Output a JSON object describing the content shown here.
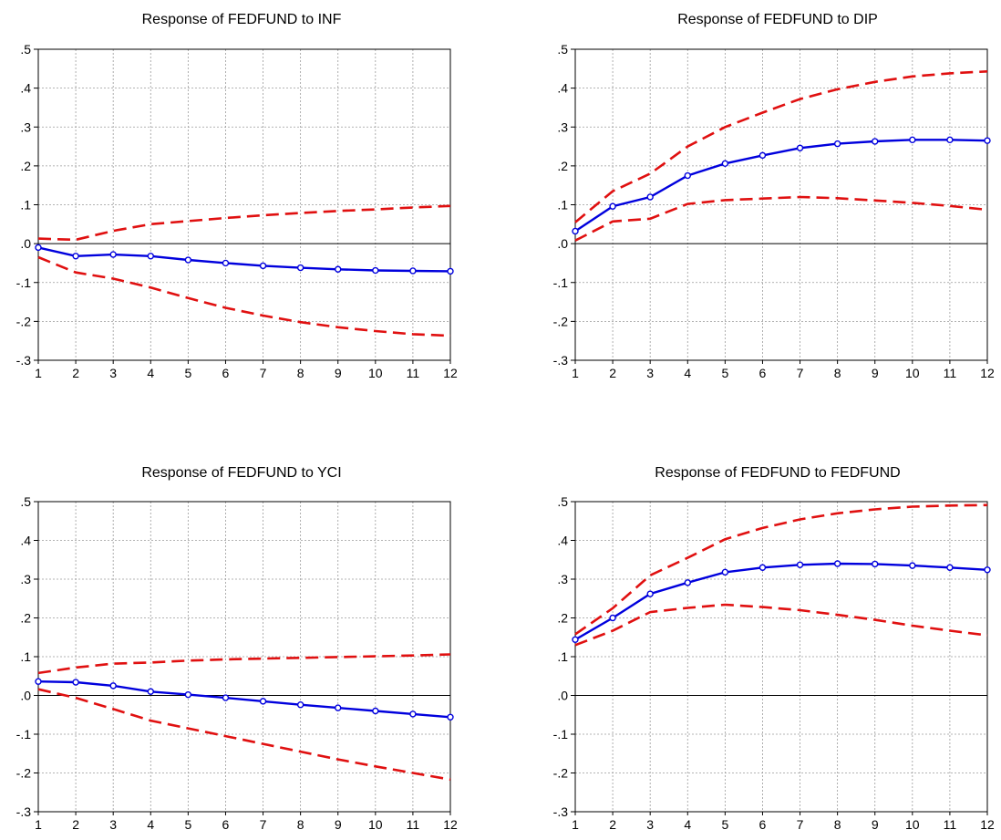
{
  "colors": {
    "response": "#0000dd",
    "bands": "#e01010",
    "grid": "#9a9a9a",
    "axis": "#000000"
  },
  "chart_data": [
    {
      "type": "line",
      "title": "Response of FEDFUND to INF",
      "xlabel": "",
      "ylabel": "",
      "x": [
        1,
        2,
        3,
        4,
        5,
        6,
        7,
        8,
        9,
        10,
        11,
        12
      ],
      "ylim": [
        -0.3,
        0.5
      ],
      "yticks": [
        ".5",
        ".4",
        ".3",
        ".2",
        ".1",
        ".0",
        "-.1",
        "-.2",
        "-.3"
      ],
      "ytick_values": [
        0.5,
        0.4,
        0.3,
        0.2,
        0.1,
        0.0,
        -0.1,
        -0.2,
        -0.3
      ],
      "xticks": [
        "1",
        "2",
        "3",
        "4",
        "5",
        "6",
        "7",
        "8",
        "9",
        "10",
        "11",
        "12"
      ],
      "grid": true,
      "series": [
        {
          "role": "response",
          "values": [
            -0.01,
            -0.032,
            -0.028,
            -0.032,
            -0.042,
            -0.05,
            -0.057,
            -0.062,
            -0.066,
            -0.069,
            -0.07,
            -0.071
          ]
        },
        {
          "role": "upper_band",
          "values": [
            0.013,
            0.01,
            0.033,
            0.05,
            0.058,
            0.066,
            0.073,
            0.079,
            0.084,
            0.088,
            0.093,
            0.097
          ]
        },
        {
          "role": "lower_band",
          "values": [
            -0.035,
            -0.074,
            -0.09,
            -0.113,
            -0.14,
            -0.165,
            -0.185,
            -0.202,
            -0.215,
            -0.225,
            -0.233,
            -0.237
          ]
        }
      ]
    },
    {
      "type": "line",
      "title": "Response of FEDFUND to DIP",
      "xlabel": "",
      "ylabel": "",
      "x": [
        1,
        2,
        3,
        4,
        5,
        6,
        7,
        8,
        9,
        10,
        11,
        12
      ],
      "ylim": [
        -0.3,
        0.5
      ],
      "yticks": [
        ".5",
        ".4",
        ".3",
        ".2",
        ".1",
        ".0",
        "-.1",
        "-.2",
        "-.3"
      ],
      "ytick_values": [
        0.5,
        0.4,
        0.3,
        0.2,
        0.1,
        0.0,
        -0.1,
        -0.2,
        -0.3
      ],
      "xticks": [
        "1",
        "2",
        "3",
        "4",
        "5",
        "6",
        "7",
        "8",
        "9",
        "10",
        "11",
        "12"
      ],
      "grid": true,
      "series": [
        {
          "role": "response",
          "values": [
            0.032,
            0.096,
            0.12,
            0.175,
            0.206,
            0.227,
            0.246,
            0.257,
            0.263,
            0.267,
            0.267,
            0.265
          ]
        },
        {
          "role": "upper_band",
          "values": [
            0.055,
            0.135,
            0.18,
            0.25,
            0.3,
            0.337,
            0.372,
            0.397,
            0.416,
            0.43,
            0.438,
            0.443
          ]
        },
        {
          "role": "lower_band",
          "values": [
            0.008,
            0.057,
            0.064,
            0.102,
            0.112,
            0.116,
            0.12,
            0.117,
            0.111,
            0.105,
            0.097,
            0.087
          ]
        }
      ]
    },
    {
      "type": "line",
      "title": "Response of FEDFUND to YCI",
      "xlabel": "",
      "ylabel": "",
      "x": [
        1,
        2,
        3,
        4,
        5,
        6,
        7,
        8,
        9,
        10,
        11,
        12
      ],
      "ylim": [
        -0.3,
        0.5
      ],
      "yticks": [
        ".5",
        ".4",
        ".3",
        ".2",
        ".1",
        ".0",
        "-.1",
        "-.2",
        "-.3"
      ],
      "ytick_values": [
        0.5,
        0.4,
        0.3,
        0.2,
        0.1,
        0.0,
        -0.1,
        -0.2,
        -0.3
      ],
      "xticks": [
        "1",
        "2",
        "3",
        "4",
        "5",
        "6",
        "7",
        "8",
        "9",
        "10",
        "11",
        "12"
      ],
      "grid": true,
      "series": [
        {
          "role": "response",
          "values": [
            0.036,
            0.034,
            0.025,
            0.01,
            0.002,
            -0.006,
            -0.015,
            -0.024,
            -0.032,
            -0.04,
            -0.048,
            -0.056
          ]
        },
        {
          "role": "upper_band",
          "values": [
            0.058,
            0.072,
            0.082,
            0.085,
            0.09,
            0.093,
            0.095,
            0.097,
            0.099,
            0.101,
            0.103,
            0.106
          ]
        },
        {
          "role": "lower_band",
          "values": [
            0.016,
            -0.006,
            -0.035,
            -0.065,
            -0.085,
            -0.105,
            -0.125,
            -0.145,
            -0.165,
            -0.183,
            -0.2,
            -0.217
          ]
        }
      ]
    },
    {
      "type": "line",
      "title": "Response of FEDFUND to FEDFUND",
      "xlabel": "",
      "ylabel": "",
      "x": [
        1,
        2,
        3,
        4,
        5,
        6,
        7,
        8,
        9,
        10,
        11,
        12
      ],
      "ylim": [
        -0.3,
        0.5
      ],
      "yticks": [
        ".5",
        ".4",
        ".3",
        ".2",
        ".1",
        ".0",
        "-.1",
        "-.2",
        "-.3"
      ],
      "ytick_values": [
        0.5,
        0.4,
        0.3,
        0.2,
        0.1,
        0.0,
        -0.1,
        -0.2,
        -0.3
      ],
      "xticks": [
        "1",
        "2",
        "3",
        "4",
        "5",
        "6",
        "7",
        "8",
        "9",
        "10",
        "11",
        "12"
      ],
      "grid": true,
      "series": [
        {
          "role": "response",
          "values": [
            0.144,
            0.2,
            0.262,
            0.291,
            0.318,
            0.33,
            0.337,
            0.34,
            0.339,
            0.335,
            0.33,
            0.324
          ]
        },
        {
          "role": "upper_band",
          "values": [
            0.158,
            0.225,
            0.31,
            0.355,
            0.403,
            0.432,
            0.454,
            0.47,
            0.48,
            0.487,
            0.49,
            0.491
          ]
        },
        {
          "role": "lower_band",
          "values": [
            0.13,
            0.167,
            0.215,
            0.226,
            0.234,
            0.228,
            0.22,
            0.208,
            0.195,
            0.18,
            0.167,
            0.155
          ]
        }
      ]
    }
  ]
}
